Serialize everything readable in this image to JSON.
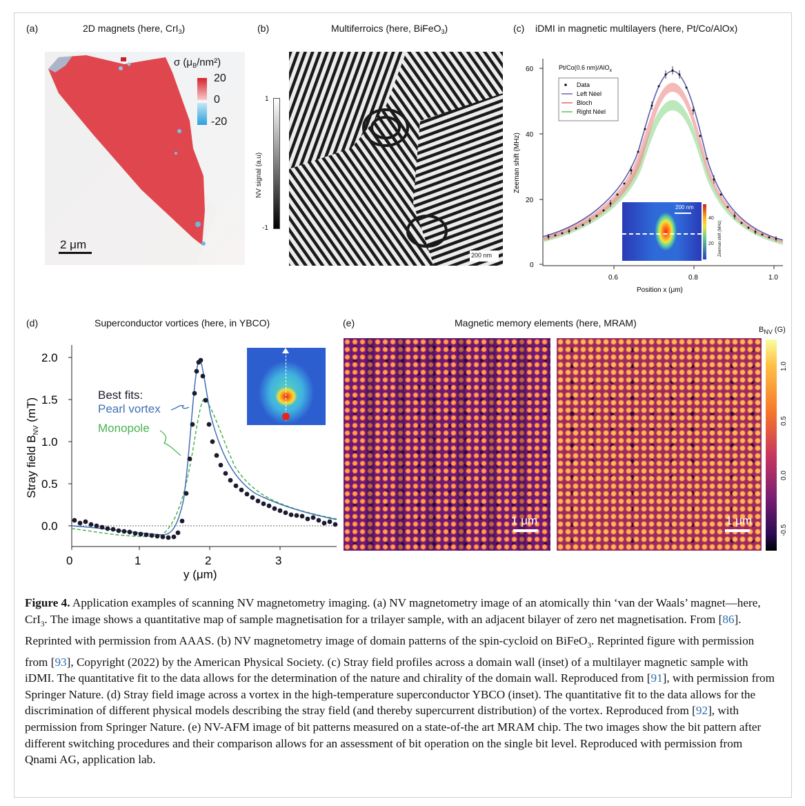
{
  "panels": {
    "a": {
      "label": "(a)",
      "title": "2D magnets (here, CrI",
      "title_sub": "3",
      "title_end": ")",
      "colorbar_label": "σ (μ",
      "colorbar_label_sub": "B",
      "colorbar_label_end": "/nm²)",
      "colorbar_ticks": [
        "20",
        "0",
        "-20"
      ],
      "scalebar": "2 μm"
    },
    "b": {
      "label": "(b)",
      "title": "Multiferroics (here, BiFeO",
      "title_sub": "3",
      "title_end": ")",
      "colorbar_label": "NV signal (a.u)",
      "colorbar_ticks": [
        "1",
        "-1"
      ],
      "scalebar": "200 nm"
    },
    "c": {
      "label": "(c)",
      "title": "iDMI in magnetic multilayers (here, Pt/Co/AlOx)",
      "inset_title": "Pt/Co(0.6 nm)/AlO",
      "inset_title_sub": "x",
      "ylabel": "Zeeman shift (MHz)",
      "xlabel": "Position x (μm)",
      "yticks": [
        "60",
        "40",
        "20",
        "0"
      ],
      "xticks": [
        "0.6",
        "0.8",
        "1.0"
      ],
      "legend": [
        "Data",
        "Left Néel",
        "Bloch",
        "Right Néel"
      ],
      "inset_scalebar": "200 nm",
      "inset_colorbar_label": "Zeeman shift (MHz)",
      "inset_colorbar_ticks": [
        "40",
        "20"
      ]
    },
    "d": {
      "label": "(d)",
      "title": "Superconductor vortices (here, in YBCO)",
      "ylabel": "Stray field B",
      "ylabel_sub": "NV",
      "ylabel_end": " (mT)",
      "xlabel": "y (μm)",
      "yticks": [
        "2.0",
        "1.5",
        "1.0",
        "0.5",
        "0.0"
      ],
      "xticks": [
        "0",
        "1",
        "2",
        "3"
      ],
      "annotation_fits": "Best fits:",
      "annotation_pearl": "Pearl vortex",
      "annotation_monopole": "Monopole"
    },
    "e": {
      "label": "(e)",
      "title": "Magnetic memory elements (here, MRAM)",
      "colorbar_label": "B",
      "colorbar_label_sub": "NV",
      "colorbar_label_end": " (G)",
      "colorbar_ticks": [
        "1.0",
        "0.5",
        "0.0",
        "-0.5"
      ],
      "scalebar_left": "1 μm",
      "scalebar_right": "1 μm"
    }
  },
  "colors": {
    "crI3_red": "#e0464e",
    "pearl_blue": "#3f6fb5",
    "monopole_green": "#49b24f",
    "ref_blue": "#2a6db0"
  },
  "caption": {
    "label": "Figure 4.",
    "t1": " Application examples of scanning NV magnetometry imaging. (a) NV magnetometry image of an atomically thin ‘van der Waals’ magnet—here, CrI",
    "t1_sub": "3",
    "t2": ". The image shows a quantitative map of sample magnetisation for a trilayer sample, with an adjacent bilayer of zero net magnetisation. From [",
    "r1": "86",
    "t3": "]. Reprinted with permission from AAAS. (b) NV magnetometry image of domain patterns of the spin-cycloid on BiFeO",
    "t3_sub": "3",
    "t4": ". Reprinted figure with permission from [",
    "r2": "93",
    "t5": "], Copyright (2022) by the American Physical Society. (c) Stray field profiles across a domain wall (inset) of a multilayer magnetic sample with iDMI. The quantitative fit to the data allows for the determination of the nature and chirality of the domain wall. Reproduced from [",
    "r3": "91",
    "t6": "], with permission from Springer Nature. (d) Stray field image across a vortex in the high-temperature superconductor YBCO (inset). The quantitative fit to the data allows for the discrimination of different physical models describing the stray field (and thereby supercurrent distribution) of the vortex. Reproduced from [",
    "r4": "92",
    "t7": "], with permission from Springer Nature. (e) NV-AFM image of bit patterns measured on a state-of-the art MRAM chip. The two images show the bit pattern after different switching procedures and their comparison allows for an assessment of bit operation on the single bit level. Reproduced with permission from Qnami AG, application lab."
  }
}
